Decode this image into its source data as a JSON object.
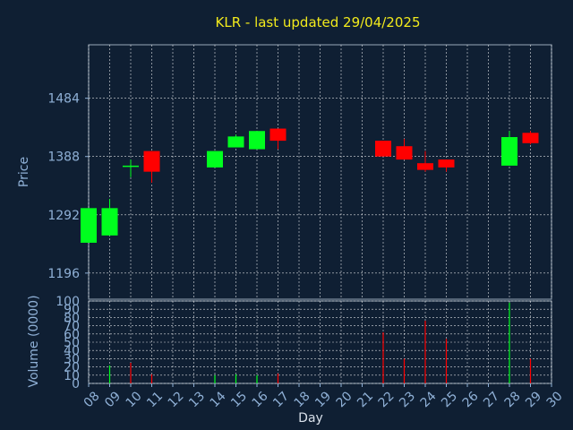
{
  "chart_data": [
    {
      "type": "candlestick",
      "title": "KLR - last updated 29/04/2025",
      "ylabel": "Price",
      "yticks": [
        "1196",
        "1292",
        "1388",
        "1484"
      ],
      "ylim": [
        1153,
        1572
      ],
      "xlim": [
        8,
        30
      ],
      "candles": [
        {
          "day": 8,
          "open": 1246,
          "high": 1303,
          "low": 1246,
          "close": 1303
        },
        {
          "day": 9,
          "open": 1258,
          "high": 1318,
          "low": 1258,
          "close": 1303
        },
        {
          "day": 10,
          "open": 1373,
          "high": 1383,
          "low": 1354,
          "close": 1373
        },
        {
          "day": 11,
          "open": 1397,
          "high": 1397,
          "low": 1345,
          "close": 1363
        },
        {
          "day": 14,
          "open": 1370,
          "high": 1397,
          "low": 1370,
          "close": 1397
        },
        {
          "day": 15,
          "open": 1403,
          "high": 1424,
          "low": 1403,
          "close": 1421
        },
        {
          "day": 16,
          "open": 1400,
          "high": 1430,
          "low": 1400,
          "close": 1430
        },
        {
          "day": 17,
          "open": 1434,
          "high": 1434,
          "low": 1400,
          "close": 1414
        },
        {
          "day": 22,
          "open": 1414,
          "high": 1414,
          "low": 1388,
          "close": 1388
        },
        {
          "day": 23,
          "open": 1405,
          "high": 1417,
          "low": 1383,
          "close": 1383
        },
        {
          "day": 24,
          "open": 1377,
          "high": 1397,
          "low": 1363,
          "close": 1366
        },
        {
          "day": 25,
          "open": 1383,
          "high": 1383,
          "low": 1363,
          "close": 1370
        },
        {
          "day": 28,
          "open": 1373,
          "high": 1430,
          "low": 1373,
          "close": 1420
        },
        {
          "day": 29,
          "open": 1427,
          "high": 1430,
          "low": 1408,
          "close": 1410
        }
      ],
      "colors": {
        "up": "#00ff1e",
        "down": "#ff0000",
        "background": "#0f1f33",
        "grid": "#ffffff",
        "title": "#f2ea1c",
        "axis_text": "#8fb0d6"
      },
      "grid": true
    },
    {
      "type": "bar",
      "ylabel": "Volume (0000)",
      "xlabel": "Day",
      "yticks": [
        "0",
        "10",
        "20",
        "30",
        "40",
        "50",
        "60",
        "70",
        "80",
        "90",
        "100"
      ],
      "ylim": [
        0,
        100
      ],
      "xticks": [
        "08",
        "09",
        "10",
        "11",
        "12",
        "13",
        "14",
        "15",
        "16",
        "17",
        "18",
        "19",
        "20",
        "21",
        "22",
        "23",
        "24",
        "25",
        "26",
        "27",
        "28",
        "29",
        "30"
      ],
      "volumes": [
        {
          "day": 9,
          "value": 22,
          "dir": "up"
        },
        {
          "day": 10,
          "value": 25,
          "dir": "down"
        },
        {
          "day": 11,
          "value": 11,
          "dir": "down"
        },
        {
          "day": 14,
          "value": 10,
          "dir": "up"
        },
        {
          "day": 15,
          "value": 11,
          "dir": "up"
        },
        {
          "day": 16,
          "value": 10,
          "dir": "up"
        },
        {
          "day": 17,
          "value": 12,
          "dir": "down"
        },
        {
          "day": 22,
          "value": 62,
          "dir": "down"
        },
        {
          "day": 23,
          "value": 30,
          "dir": "down"
        },
        {
          "day": 24,
          "value": 76,
          "dir": "down"
        },
        {
          "day": 25,
          "value": 54,
          "dir": "down"
        },
        {
          "day": 28,
          "value": 98,
          "dir": "up"
        },
        {
          "day": 29,
          "value": 30,
          "dir": "down"
        }
      ],
      "grid": true
    }
  ]
}
